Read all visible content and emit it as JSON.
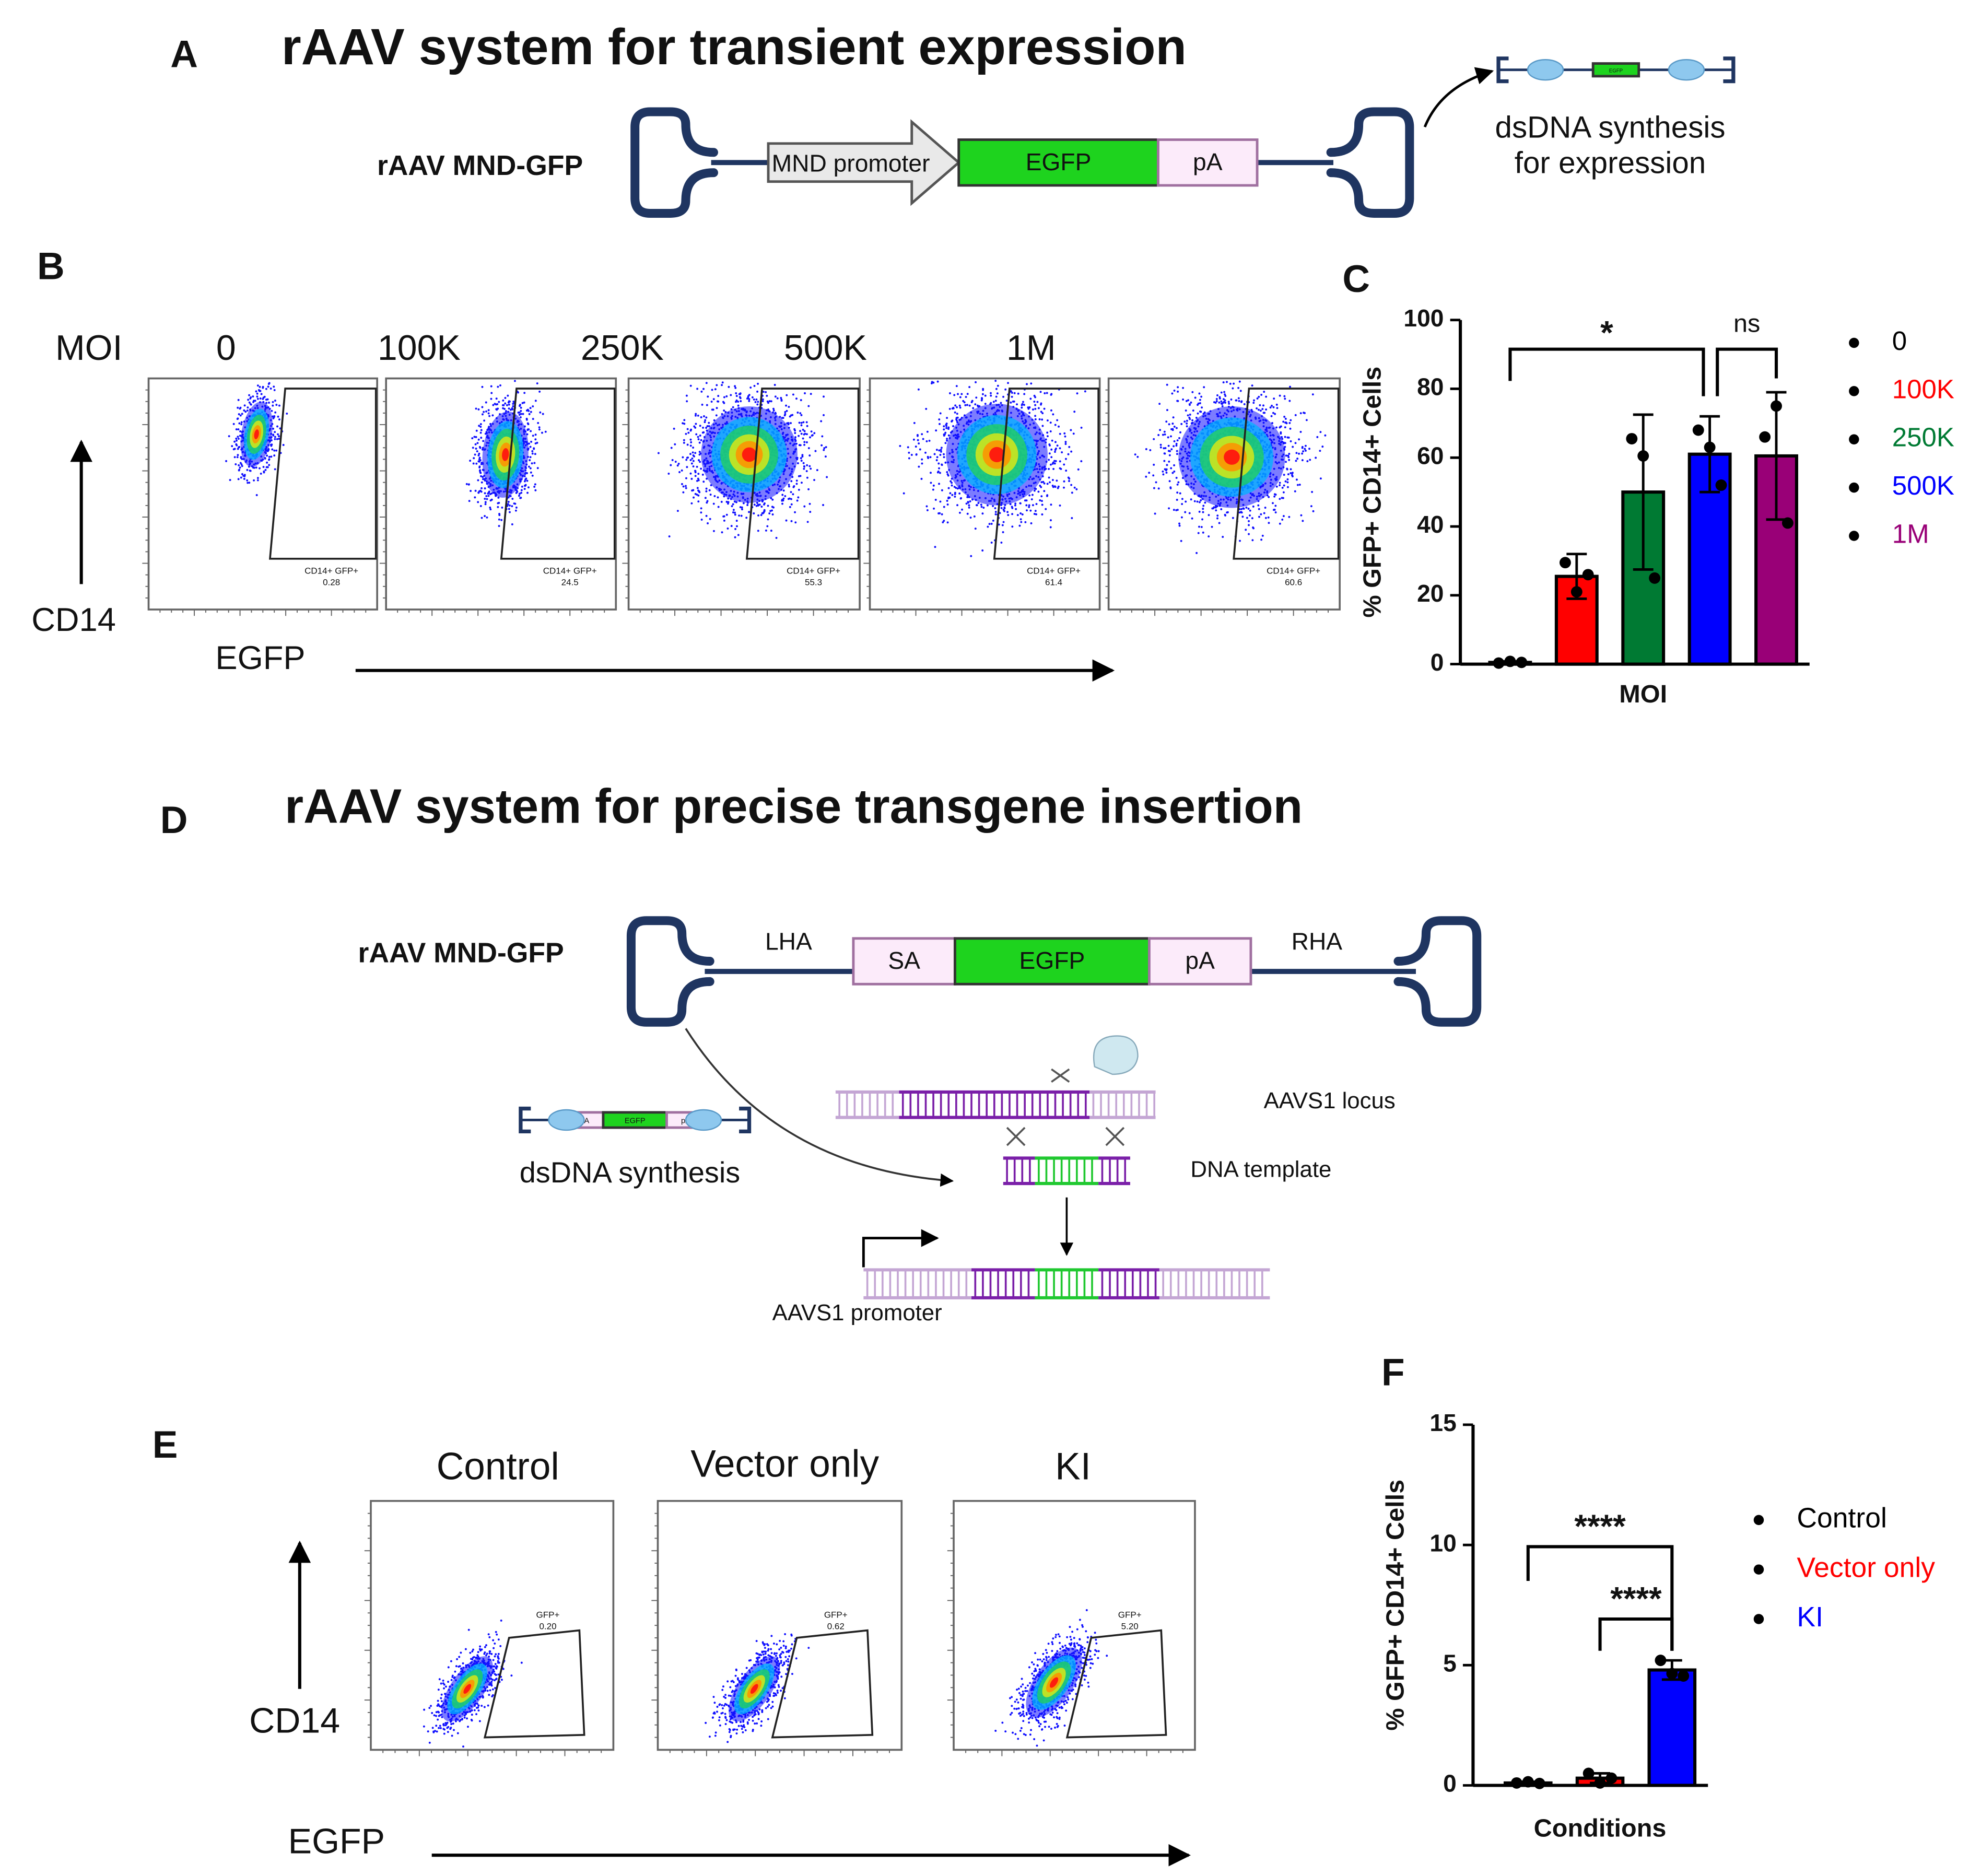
{
  "panel_a": {
    "label": "A",
    "title": "rAAV system for transient expression",
    "construct": "rAAV MND-GFP",
    "elements": [
      "MND promoter",
      "EGFP",
      "pA"
    ],
    "caption": [
      "dsDNA synthesis",
      "for expression"
    ]
  },
  "panel_b": {
    "label": "B",
    "moi_label": "MOI",
    "columns": [
      "0",
      "100K",
      "250K",
      "500K",
      "1M"
    ],
    "gate_name": "CD14+ GFP+",
    "gate_values": [
      "0.28",
      "24.5",
      "55.3",
      "61.4",
      "60.6"
    ],
    "y_label": "CD14",
    "x_label": "EGFP"
  },
  "panel_d": {
    "label": "D",
    "title": "rAAV system for precise transgene insertion",
    "construct": "rAAV MND-GFP",
    "elements": [
      "LHA",
      "SA",
      "EGFP",
      "pA",
      "RHA"
    ],
    "locus": "AAVS1 locus",
    "template": "DNA template",
    "synthesis": "dsDNA synthesis",
    "promoter": "AAVS1 promoter"
  },
  "panel_e": {
    "label": "E",
    "columns": [
      "Control",
      "Vector only",
      "KI"
    ],
    "gate_name": "GFP+",
    "gate_values": [
      "0.20",
      "0.62",
      "5.20"
    ],
    "y_label": "CD14",
    "x_label": "EGFP"
  },
  "chart_data": [
    {
      "type": "bar",
      "panel_label": "C",
      "ylabel": "% GFP+ CD14+ Cells",
      "xlabel": "MOI",
      "categories": [
        "0",
        "100K",
        "250K",
        "500K",
        "1M"
      ],
      "colors": [
        "#000000",
        "#ff0000",
        "#007a33",
        "#0000ff",
        "#990077"
      ],
      "values": [
        0.5,
        25.5,
        50,
        61,
        60.5
      ],
      "errors": [
        0.3,
        6.5,
        22.5,
        11,
        18.5
      ],
      "points": [
        [
          0.3,
          0.8,
          0.5
        ],
        [
          29.5,
          21,
          26
        ],
        [
          65.5,
          60.5,
          25
        ],
        [
          68,
          63,
          52
        ],
        [
          66,
          75,
          41
        ]
      ],
      "ylim": [
        0,
        100
      ],
      "yticks": [
        0,
        20,
        40,
        60,
        80,
        100
      ],
      "annotations": [
        "*",
        "ns"
      ],
      "legend_position": "right"
    },
    {
      "type": "bar",
      "panel_label": "F",
      "ylabel": "% GFP+ CD14+ Cells",
      "xlabel": "Conditions",
      "categories": [
        "Control",
        "Vector only",
        "KI"
      ],
      "colors": [
        "#000000",
        "#ff0000",
        "#0000ff"
      ],
      "values": [
        0.1,
        0.3,
        4.8
      ],
      "errors": [
        0.05,
        0.2,
        0.4
      ],
      "points": [
        [
          0.1,
          0.15,
          0.08
        ],
        [
          0.5,
          0.1,
          0.3
        ],
        [
          5.2,
          4.65,
          4.55
        ]
      ],
      "ylim": [
        0,
        15
      ],
      "yticks": [
        0,
        5,
        10,
        15
      ],
      "annotations": [
        "****",
        "****"
      ],
      "legend_position": "right"
    }
  ]
}
